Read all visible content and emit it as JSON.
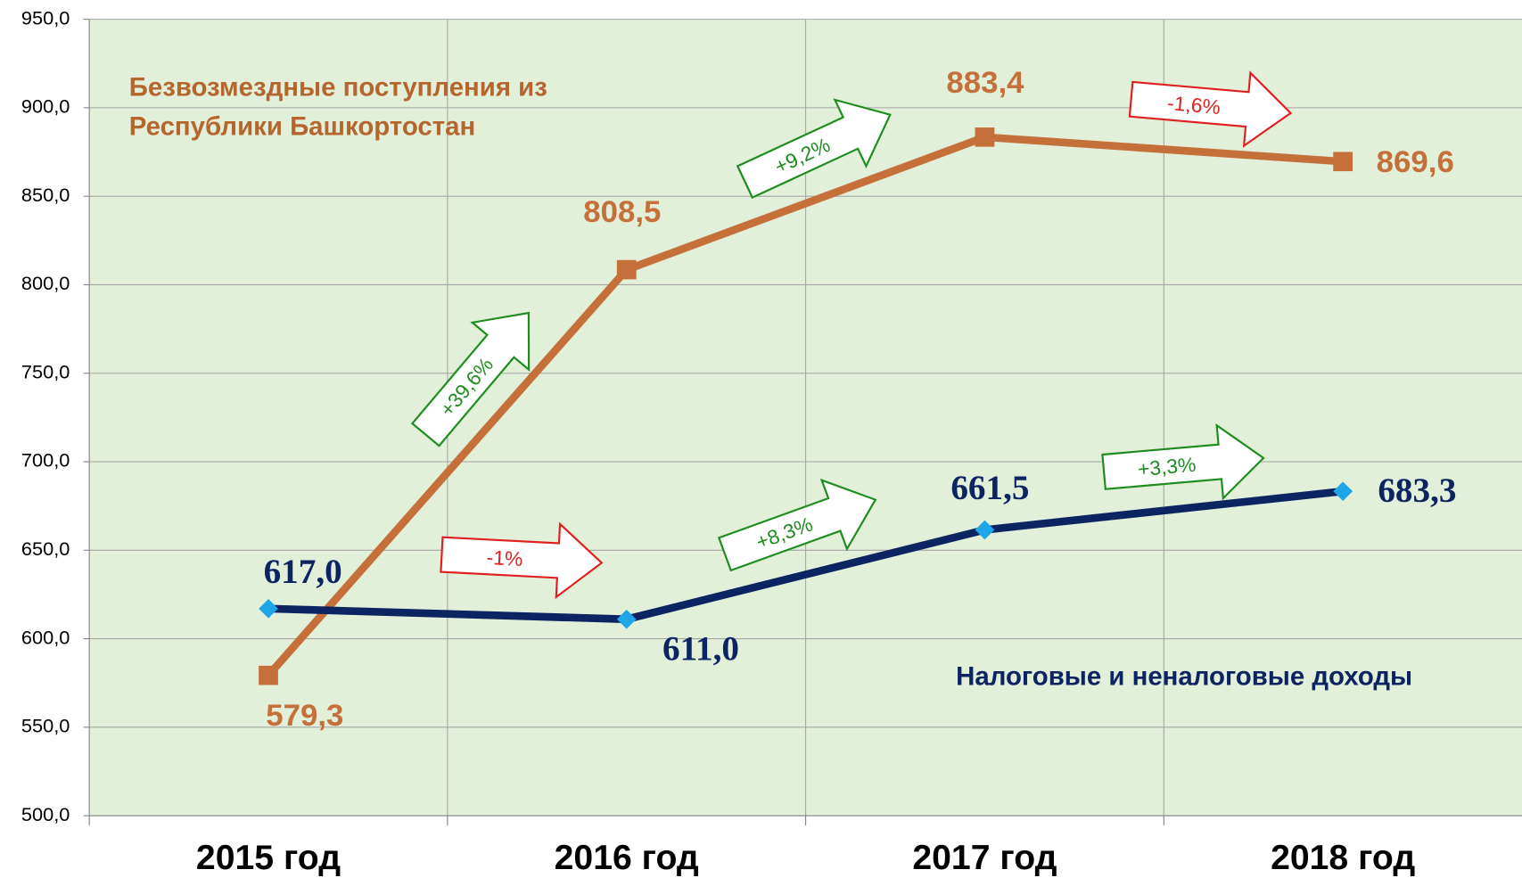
{
  "chart_data": {
    "type": "line",
    "categories": [
      "2015 год",
      "2016 год",
      "2017 год",
      "2018 год"
    ],
    "ylim": [
      500,
      950
    ],
    "yticks": [
      {
        "value": 500,
        "label": "500,0"
      },
      {
        "value": 550,
        "label": "550,0"
      },
      {
        "value": 600,
        "label": "600,0"
      },
      {
        "value": 650,
        "label": "650,0"
      },
      {
        "value": 700,
        "label": "700,0"
      },
      {
        "value": 750,
        "label": "750,0"
      },
      {
        "value": 800,
        "label": "800,0"
      },
      {
        "value": 850,
        "label": "850,0"
      },
      {
        "value": 900,
        "label": "900,0"
      },
      {
        "value": 950,
        "label": "950,0"
      }
    ],
    "grid": true,
    "series": [
      {
        "name": "Безвозмездные поступления из Республики Башкортостан",
        "color": "#c5703a",
        "marker": "square",
        "values": [
          579.3,
          808.5,
          883.4,
          869.6
        ],
        "value_labels": [
          "579,3",
          "808,5",
          "883,4",
          "869,6"
        ]
      },
      {
        "name": "Налоговые и неналоговые доходы",
        "color": "#0c2461",
        "marker": "diamond",
        "values": [
          617.0,
          611.0,
          661.5,
          683.3
        ],
        "value_labels": [
          "617,0",
          "611,0",
          "661,5",
          "683,3"
        ]
      }
    ],
    "annotations": [
      {
        "text": "+39,6%",
        "color": "#1e8c1e"
      },
      {
        "text": "+9,2%",
        "color": "#1e8c1e"
      },
      {
        "text": "-1,6%",
        "color": "#e02020"
      },
      {
        "text": "-1%",
        "color": "#e02020"
      },
      {
        "text": "+8,3%",
        "color": "#1e8c1e"
      },
      {
        "text": "+3,3%",
        "color": "#1e8c1e"
      }
    ]
  }
}
